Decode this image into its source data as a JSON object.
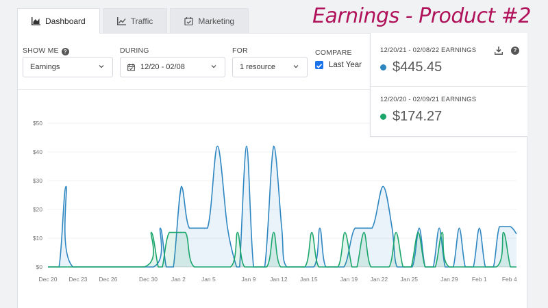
{
  "heading": "Earnings - Product #2",
  "tabs": [
    {
      "label": "Dashboard",
      "icon": "area-chart-icon"
    },
    {
      "label": "Traffic",
      "icon": "line-chart-icon"
    },
    {
      "label": "Marketing",
      "icon": "calendar-check-icon"
    }
  ],
  "controls": {
    "show_me": {
      "label": "SHOW ME",
      "value": "Earnings"
    },
    "during": {
      "label": "DURING",
      "value": "12/20 - 02/08"
    },
    "for": {
      "label": "FOR",
      "value": "1 resource"
    },
    "compare": {
      "label": "COMPARE",
      "checkbox_label": "Last Year",
      "checked": true
    }
  },
  "summary": {
    "current": {
      "label": "12/20/21 - 02/08/22 EARNINGS",
      "value": "$445.45",
      "color": "#2e86c1"
    },
    "previous": {
      "label": "12/20/20 - 02/09/21 EARNINGS",
      "value": "$174.27",
      "color": "#1aa66b"
    }
  },
  "chart_data": {
    "type": "area",
    "y_ticks": [
      "$0",
      "$10",
      "$20",
      "$30",
      "$40",
      "$50"
    ],
    "x_ticks": [
      "Dec 20",
      "Dec 23",
      "Dec 26",
      "Dec 30",
      "Jan 2",
      "Jan 5",
      "Jan 9",
      "Jan 12",
      "Jan 15",
      "Jan 19",
      "Jan 22",
      "Jan 25",
      "Jan 29",
      "Feb 1",
      "Feb 4"
    ],
    "ylim": [
      0,
      50
    ],
    "x_days": [
      0,
      3,
      6,
      10,
      13,
      16,
      20,
      23,
      26,
      30,
      33,
      36,
      40,
      43,
      46
    ],
    "series": [
      {
        "color": "#2e86c1",
        "fill": "rgba(46,134,193,0.10)",
        "points": [
          [
            0,
            0
          ],
          [
            1.1,
            0
          ],
          [
            1.8,
            28
          ],
          [
            2.5,
            0
          ],
          [
            10.5,
            0
          ],
          [
            11.2,
            13.5
          ],
          [
            11.8,
            0
          ],
          [
            12.5,
            0
          ],
          [
            13.3,
            28
          ],
          [
            14.1,
            13.5
          ],
          [
            15.9,
            13.5
          ],
          [
            16.9,
            42
          ],
          [
            17.9,
            13.5
          ],
          [
            18.8,
            0
          ],
          [
            19.1,
            0
          ],
          [
            19.8,
            42
          ],
          [
            20.5,
            0
          ],
          [
            21.6,
            0
          ],
          [
            22.5,
            42
          ],
          [
            23.3,
            13.5
          ],
          [
            23.8,
            0
          ],
          [
            26.5,
            0
          ],
          [
            27.1,
            13.5
          ],
          [
            27.7,
            0
          ],
          [
            29.5,
            0
          ],
          [
            30.6,
            13.5
          ],
          [
            32.3,
            13.5
          ],
          [
            33.4,
            28
          ],
          [
            34.3,
            13.5
          ],
          [
            34.8,
            0
          ],
          [
            36.3,
            0
          ],
          [
            37.0,
            13.5
          ],
          [
            37.6,
            0
          ],
          [
            38.4,
            0
          ],
          [
            39.0,
            13.5
          ],
          [
            39.6,
            0
          ],
          [
            40.4,
            0
          ],
          [
            41.0,
            13.5
          ],
          [
            41.6,
            0
          ],
          [
            42.4,
            0
          ],
          [
            43.0,
            13.5
          ],
          [
            43.6,
            0
          ],
          [
            44.4,
            0
          ],
          [
            45.0,
            14
          ],
          [
            46.1,
            14
          ],
          [
            46.7,
            11.5
          ]
        ]
      },
      {
        "color": "#1aa66b",
        "fill": "rgba(26,166,107,0.12)",
        "points": [
          [
            0,
            0
          ],
          [
            9.6,
            0
          ],
          [
            10.3,
            12
          ],
          [
            11.0,
            0
          ],
          [
            11.4,
            0
          ],
          [
            12.1,
            12
          ],
          [
            13.7,
            12
          ],
          [
            14.6,
            0
          ],
          [
            18.2,
            0
          ],
          [
            18.9,
            12
          ],
          [
            19.6,
            0
          ],
          [
            21.8,
            0
          ],
          [
            22.5,
            12
          ],
          [
            23.2,
            0
          ],
          [
            25.6,
            0
          ],
          [
            26.3,
            12
          ],
          [
            27.0,
            0
          ],
          [
            28.9,
            0
          ],
          [
            29.6,
            12
          ],
          [
            30.3,
            0
          ],
          [
            30.8,
            0
          ],
          [
            31.5,
            12
          ],
          [
            32.2,
            0
          ],
          [
            34.0,
            0
          ],
          [
            34.7,
            12
          ],
          [
            35.4,
            0
          ],
          [
            36.2,
            0
          ],
          [
            36.9,
            12
          ],
          [
            37.6,
            0
          ],
          [
            38.6,
            0
          ],
          [
            39.3,
            12
          ],
          [
            40.0,
            0
          ],
          [
            44.7,
            0
          ],
          [
            45.4,
            12
          ],
          [
            46.1,
            0
          ],
          [
            46.7,
            0
          ]
        ]
      }
    ]
  }
}
